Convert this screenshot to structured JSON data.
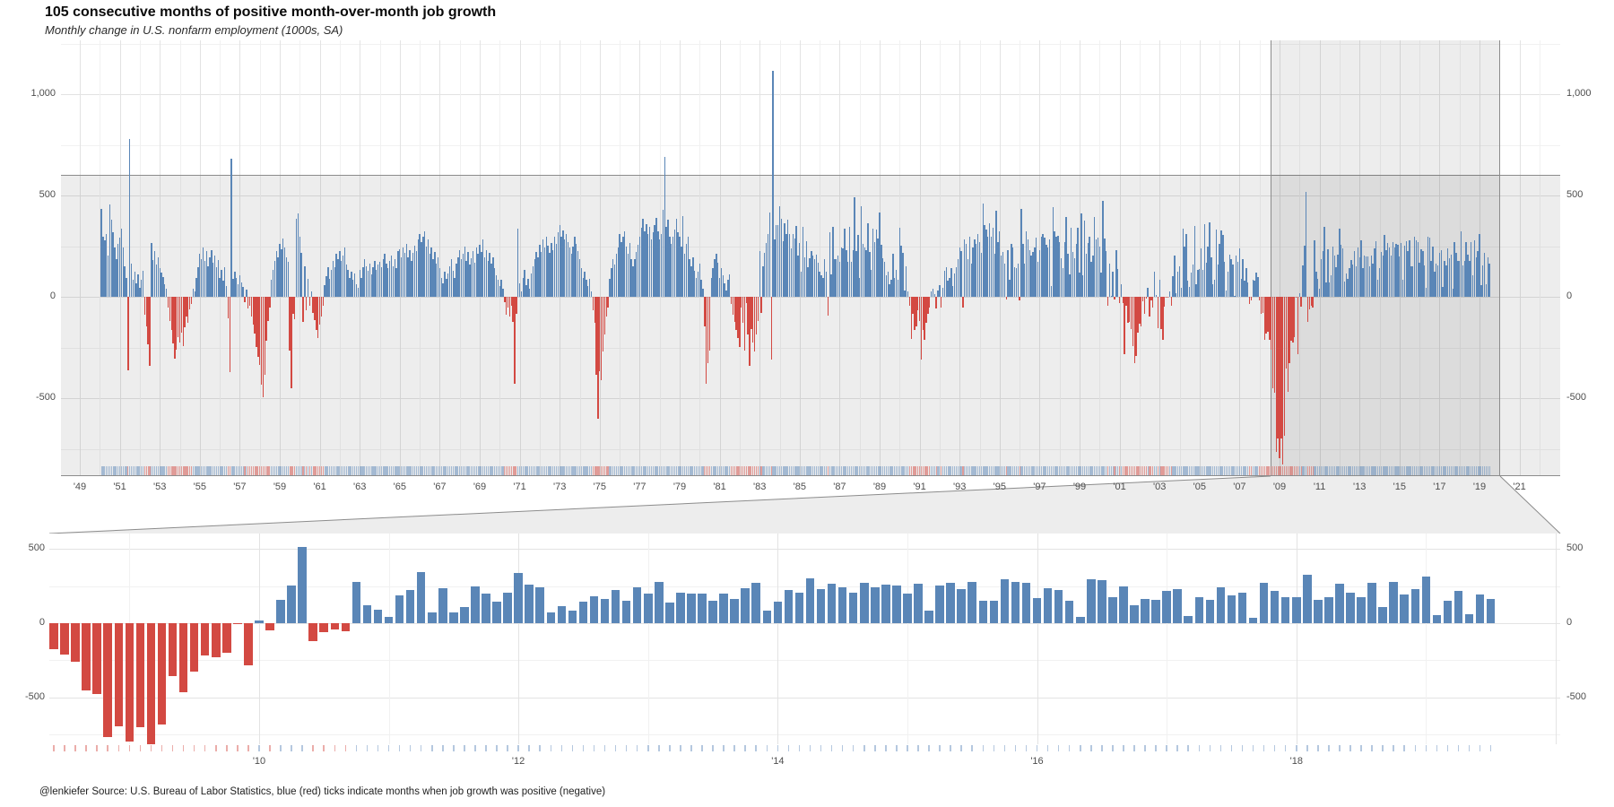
{
  "title": "105 consecutive months of positive month-over-month job growth",
  "subtitle": "Monthly change in U.S. nonfarm employment (1000s, SA)",
  "caption": "@lenkiefer Source: U.S. Bureau of Labor Statistics, blue (red) ticks indicate months when job growth was positive (negative)",
  "colors": {
    "positive": "#5a86b7",
    "negative": "#d34942",
    "shade": "rgba(0,0,0,0.07)",
    "shade_border": "#8c8c8c",
    "grid_major": "#e3e3e3",
    "grid_minor": "#f1f1f1",
    "axis_text": "#4d4d4d"
  },
  "chart_data": [
    {
      "id": "full-series",
      "type": "bar",
      "title": "105 consecutive months of positive month-over-month job growth",
      "subtitle": "Monthly change in U.S. nonfarm employment (1000s, SA)",
      "unit": "thousands of jobs, seasonally adjusted",
      "start": "1950-02",
      "end": "2019-07",
      "x_range_years": [
        1948,
        2023
      ],
      "y_range": [
        -880,
        1265
      ],
      "y_ticks": [
        -500,
        0,
        500,
        1000
      ],
      "y_tick_labels": [
        "-500",
        "0",
        "500",
        "1,000"
      ],
      "x_tick_years": [
        1949,
        1951,
        1953,
        1955,
        1957,
        1959,
        1961,
        1963,
        1965,
        1967,
        1969,
        1971,
        1973,
        1975,
        1977,
        1979,
        1981,
        1983,
        1985,
        1987,
        1989,
        1991,
        1993,
        1995,
        1997,
        1999,
        2001,
        2003,
        2005,
        2007,
        2009,
        2011,
        2013,
        2015,
        2017,
        2019,
        2021
      ],
      "x_tick_labels": [
        "'49",
        "'51",
        "'53",
        "'55",
        "'57",
        "'59",
        "'61",
        "'63",
        "'65",
        "'67",
        "'69",
        "'71",
        "'73",
        "'75",
        "'77",
        "'79",
        "'81",
        "'83",
        "'85",
        "'87",
        "'89",
        "'91",
        "'93",
        "'95",
        "'97",
        "'99",
        "'01",
        "'03",
        "'05",
        "'07",
        "'09",
        "'11",
        "'13",
        "'15",
        "'17",
        "'19",
        "'21"
      ],
      "rug": "monthly ticks colored by sign of job growth",
      "highlight": {
        "x_start": "2008-06",
        "x_end": "2020-01",
        "y_band": [
          -820,
          600
        ]
      },
      "values": [
        432,
        295,
        280,
        312,
        205,
        455,
        380,
        318,
        242,
        185,
        263,
        292,
        335,
        242,
        152,
        95,
        -362,
        778,
        165,
        85,
        122,
        65,
        112,
        45,
        85,
        130,
        -88,
        -145,
        -235,
        -341,
        265,
        182,
        224,
        158,
        196,
        142,
        118,
        96,
        64,
        38,
        -52,
        -118,
        -165,
        -228,
        -305,
        -262,
        -198,
        -225,
        -178,
        -245,
        -152,
        -95,
        -128,
        -62,
        -35,
        42,
        28,
        95,
        148,
        212,
        186,
        243,
        175,
        228,
        152,
        195,
        232,
        168,
        205,
        145,
        182,
        95,
        132,
        78,
        145,
        52,
        -108,
        -372,
        680,
        88,
        122,
        95,
        62,
        105,
        72,
        48,
        -25,
        35,
        -58,
        -42,
        -95,
        -135,
        -182,
        -248,
        -295,
        -338,
        -432,
        -495,
        -385,
        -215,
        -118,
        -52,
        85,
        132,
        178,
        225,
        195,
        262,
        235,
        288,
        242,
        195,
        172,
        -265,
        -452,
        -85,
        -112,
        385,
        412,
        295,
        218,
        -125,
        152,
        -65,
        88,
        -42,
        25,
        -78,
        -115,
        -162,
        -205,
        -138,
        -95,
        -42,
        58,
        102,
        145,
        88,
        132,
        175,
        148,
        212,
        186,
        225,
        178,
        205,
        242,
        158,
        132,
        95,
        122,
        85,
        115,
        62,
        45,
        132,
        95,
        148,
        185,
        152,
        128,
        165,
        112,
        145,
        178,
        132,
        158,
        172,
        145,
        188,
        212,
        165,
        142,
        178,
        205,
        152,
        185,
        142,
        228,
        235,
        195,
        242,
        218,
        262,
        195,
        232,
        178,
        215,
        252,
        228,
        285,
        312,
        268,
        295,
        322,
        248,
        285,
        212,
        245,
        188,
        222,
        165,
        195,
        142,
        95,
        65,
        122,
        88,
        115,
        152,
        185,
        128,
        95,
        162,
        195,
        232,
        185,
        212,
        248,
        175,
        222,
        158,
        192,
        225,
        168,
        245,
        212,
        258,
        222,
        285,
        195,
        232,
        178,
        215,
        162,
        195,
        142,
        108,
        85,
        52,
        85,
        42,
        -25,
        -88,
        -52,
        -95,
        -42,
        -125,
        -428,
        -85,
        335,
        68,
        25,
        95,
        132,
        58,
        88,
        42,
        115,
        152,
        185,
        222,
        195,
        258,
        222,
        285,
        242,
        295,
        252,
        218,
        265,
        232,
        295,
        262,
        318,
        352,
        295,
        328,
        285,
        312,
        268,
        245,
        212,
        248,
        295,
        262,
        228,
        185,
        142,
        95,
        122,
        85,
        52,
        88,
        25,
        -65,
        -128,
        -385,
        -602,
        -365,
        -412,
        -268,
        -185,
        -95,
        -52,
        88,
        142,
        185,
        158,
        212,
        245,
        312,
        268,
        295,
        322,
        248,
        212,
        265,
        185,
        152,
        188,
        222,
        258,
        295,
        342,
        385,
        322,
        358,
        312,
        345,
        285,
        318,
        352,
        388,
        325,
        285,
        312,
        428,
        692,
        345,
        382,
        295,
        262,
        298,
        332,
        385,
        318,
        295,
        248,
        398,
        212,
        262,
        295,
        188,
        152,
        195,
        128,
        95,
        122,
        162,
        85,
        42,
        -145,
        -431,
        -325,
        -265,
        95,
        142,
        185,
        212,
        168,
        95,
        142,
        108,
        65,
        32,
        85,
        112,
        -35,
        -87,
        -125,
        -162,
        -205,
        -248,
        -52,
        -128,
        -265,
        -32,
        -185,
        -342,
        -158,
        -225,
        -268,
        -185,
        -118,
        225,
        -78,
        152,
        218,
        265,
        312,
        418,
        -308,
        1114,
        285,
        352,
        356,
        447,
        385,
        275,
        363,
        308,
        379,
        312,
        241,
        311,
        286,
        349,
        205,
        265,
        124,
        346,
        195,
        274,
        145,
        189,
        225,
        202,
        187,
        209,
        168,
        123,
        107,
        93,
        188,
        125,
        -93,
        318,
        113,
        346,
        187,
        186,
        205,
        171,
        243,
        240,
        338,
        231,
        173,
        346,
        174,
        229,
        492,
        225,
        304,
        94,
        447,
        263,
        244,
        229,
        363,
        221,
        135,
        338,
        269,
        333,
        288,
        415,
        258,
        192,
        173,
        108,
        125,
        62,
        85,
        212,
        95,
        135,
        85,
        342,
        251,
        215,
        32,
        152,
        25,
        -42,
        -208,
        -86,
        -162,
        -145,
        -65,
        -118,
        -308,
        -162,
        -212,
        -128,
        -85,
        -52,
        25,
        42,
        15,
        -58,
        32,
        58,
        -52,
        45,
        128,
        145,
        78,
        95,
        142,
        52,
        115,
        148,
        185,
        242,
        228,
        -52,
        285,
        262,
        185,
        295,
        162,
        242,
        285,
        262,
        312,
        268,
        215,
        462,
        352,
        332,
        295,
        362,
        298,
        342,
        212,
        425,
        268,
        322,
        205,
        222,
        162,
        -15,
        232,
        85,
        262,
        242,
        148,
        142,
        162,
        -18,
        432,
        262,
        162,
        322,
        285,
        232,
        202,
        222,
        245,
        292,
        172,
        232,
        295,
        312,
        292,
        255,
        242,
        285,
        52,
        442,
        322,
        295,
        302,
        268,
        192,
        142,
        272,
        392,
        212,
        112,
        342,
        222,
        192,
        262,
        342,
        121,
        412,
        106,
        376,
        213,
        265,
        298,
        172,
        202,
        392,
        284,
        294,
        249,
        121,
        472,
        286,
        225,
        -46,
        163,
        3,
        122,
        -11,
        231,
        138,
        -30,
        61,
        -30,
        -281,
        -44,
        -128,
        -125,
        -160,
        -244,
        -325,
        -292,
        -178,
        -132,
        -147,
        -24,
        -85,
        -7,
        45,
        -97,
        -16,
        -55,
        126,
        8,
        -156,
        83,
        -158,
        -212,
        -49,
        -6,
        -2,
        25,
        -42,
        103,
        203,
        18,
        124,
        150,
        43,
        338,
        250,
        310,
        81,
        47,
        121,
        160,
        351,
        64,
        132,
        136,
        240,
        135,
        360,
        169,
        246,
        369,
        195,
        63,
        84,
        334,
        158,
        262,
        326,
        304,
        174,
        31,
        124,
        208,
        186,
        158,
        2,
        205,
        171,
        238,
        88,
        188,
        78,
        144,
        71,
        -33,
        -18,
        85,
        82,
        118,
        97,
        -17,
        -86,
        -80,
        -214,
        -182,
        -172,
        -210,
        -259,
        -452,
        -474,
        -765,
        -697,
        -798,
        -701,
        -826,
        -684,
        -354,
        -467,
        -327,
        -216,
        -227,
        -198,
        -6,
        -283,
        18,
        -50,
        156,
        251,
        516,
        -122,
        -61,
        -42,
        -52,
        277,
        123,
        88,
        42,
        188,
        225,
        346,
        73,
        235,
        70,
        107,
        246,
        202,
        146,
        207,
        338,
        257,
        239,
        75,
        115,
        87,
        143,
        181,
        161,
        225,
        149,
        243,
        197,
        280,
        141,
        203,
        199,
        201,
        149,
        202,
        164,
        237,
        274,
        84,
        144,
        222,
        203,
        304,
        229,
        267,
        243,
        203,
        271,
        243,
        261,
        256,
        201,
        266,
        84,
        251,
        273,
        228,
        277,
        150,
        149,
        295,
        280,
        271,
        168,
        233,
        225,
        153,
        43,
        297,
        291,
        176,
        249,
        124,
        164,
        155,
        216,
        232,
        50,
        175,
        155,
        239,
        190,
        208,
        38,
        271,
        216,
        175,
        176,
        324,
        155,
        175,
        268,
        208,
        178,
        270,
        108,
        277,
        196,
        227,
        312,
        56,
        153,
        216,
        62,
        193,
        164
      ]
    },
    {
      "id": "zoom-panel",
      "type": "bar",
      "zoom_of": "full-series",
      "start": "2008-06",
      "end": "2019-07",
      "x_range": [
        "2008-05",
        "2020-02"
      ],
      "y_range": [
        -816,
        604
      ],
      "y_ticks": [
        -500,
        0,
        500
      ],
      "y_tick_labels": [
        "-500",
        "0",
        "500"
      ],
      "x_tick_years": [
        2010,
        2012,
        2014,
        2016,
        2018
      ],
      "x_tick_labels": [
        "'10",
        "'12",
        "'14",
        "'16",
        "'18"
      ],
      "rug": "monthly axis ticks colored by sign of job growth"
    }
  ]
}
